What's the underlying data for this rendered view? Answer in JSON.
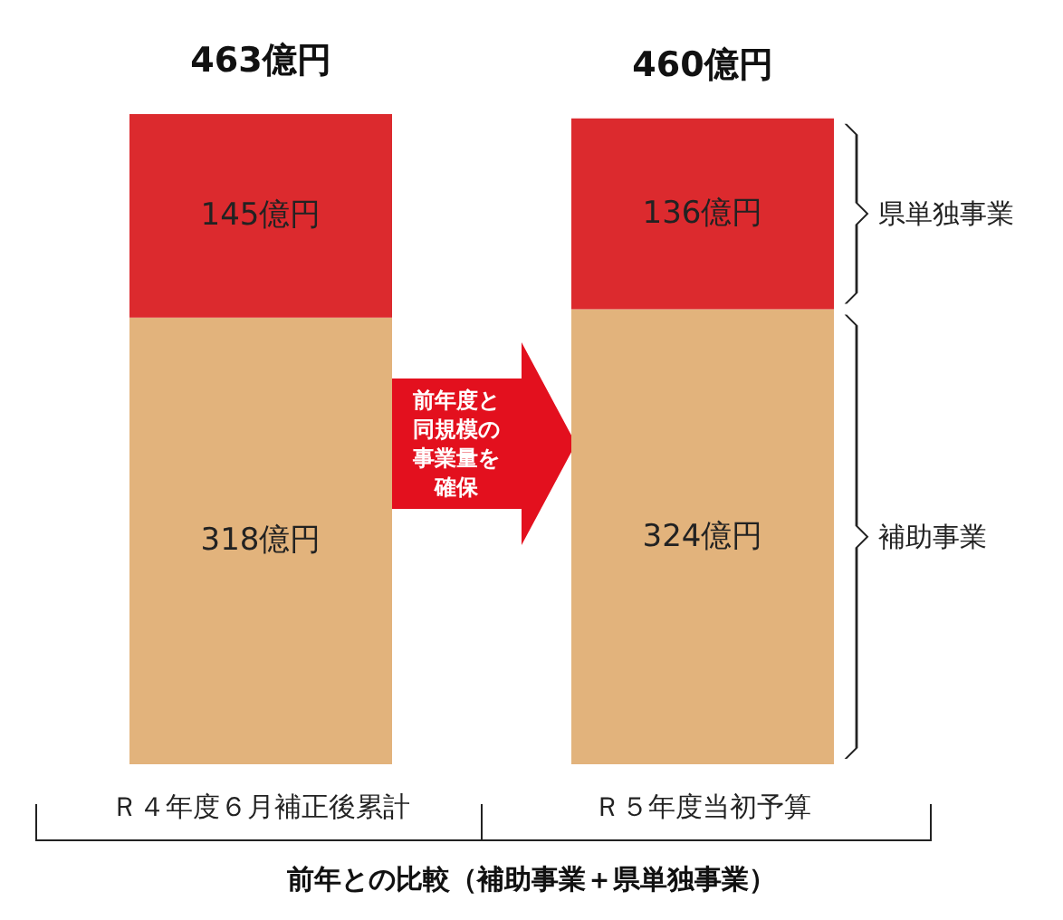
{
  "chart_data": {
    "type": "bar",
    "stacked": true,
    "title": "前年との比較（補助事業＋県単独事業）",
    "categories": [
      "Ｒ４年度６月補正後累計",
      "Ｒ５年度当初予算"
    ],
    "series": [
      {
        "name": "補助事業",
        "color": "#e2b37c",
        "values": [
          318,
          324
        ],
        "value_labels": [
          "318億円",
          "324億円"
        ]
      },
      {
        "name": "県単独事業",
        "color": "#dc2a2e",
        "values": [
          145,
          136
        ],
        "value_labels": [
          "145億円",
          "136億円"
        ]
      }
    ],
    "totals": [
      "463億円",
      "460億円"
    ],
    "annotations": [
      "前年度と同規模の事業量を確保"
    ],
    "legend": false,
    "grid": false
  }
}
